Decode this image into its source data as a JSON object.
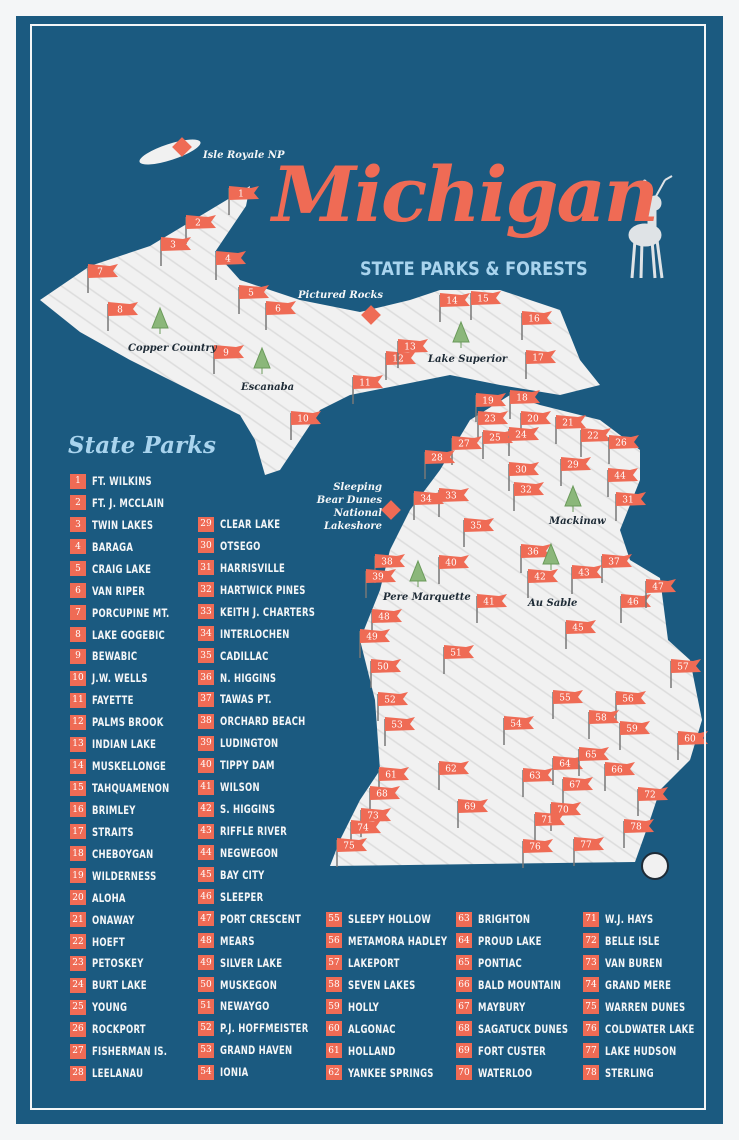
{
  "title": "Michigan",
  "subtitle": "STATE PARKS & FORESTS",
  "colors": {
    "background": "#1b5a80",
    "accent": "#ef6b55",
    "subtitle": "#a9d4ee",
    "land": "#f1f1f1"
  },
  "icons": {
    "deer": "deer-illustration",
    "tree": "pine-tree-icon",
    "landmark": "diamond-marker-icon",
    "flag": "pennant-flag-icon",
    "logo": "badge-logo"
  },
  "map_labels": {
    "isle_royale": "Isle Royale NP",
    "pictured_rocks": "Pictured Rocks",
    "copper_country": "Copper Country",
    "escanaba": "Escanaba",
    "lake_superior": "Lake Superior",
    "sleeping_bear": "Sleeping Bear Dunes National Lakeshore",
    "mackinaw": "Mackinaw",
    "pere_marquette": "Pere Marquette",
    "au_sable": "Au Sable"
  },
  "list_heading": "State Parks",
  "parks": [
    "FT. WILKINS",
    "FT. J. MCCLAIN",
    "TWIN LAKES",
    "BARAGA",
    "CRAIG LAKE",
    "VAN RIPER",
    "PORCUPINE MT.",
    "LAKE GOGEBIC",
    "BEWABIC",
    "J.W. WELLS",
    "FAYETTE",
    "PALMS BROOK",
    "INDIAN LAKE",
    "MUSKELLONGE",
    "TAHQUAMENON",
    "BRIMLEY",
    "STRAITS",
    "CHEBOYGAN",
    "WILDERNESS",
    "ALOHA",
    "ONAWAY",
    "HOEFT",
    "PETOSKEY",
    "BURT LAKE",
    "YOUNG",
    "ROCKPORT",
    "FISHERMAN IS.",
    "LEELANAU",
    "CLEAR LAKE",
    "OTSEGO",
    "HARRISVILLE",
    "HARTWICK PINES",
    "KEITH J. CHARTERS",
    "INTERLOCHEN",
    "CADILLAC",
    "N. HIGGINS",
    "TAWAS PT.",
    "ORCHARD BEACH",
    "LUDINGTON",
    "TIPPY DAM",
    "WILSON",
    "S. HIGGINS",
    "RIFFLE RIVER",
    "NEGWEGON",
    "BAY CITY",
    "SLEEPER",
    "PORT CRESCENT",
    "MEARS",
    "SILVER LAKE",
    "MUSKEGON",
    "NEWAYGO",
    "P.J. HOFFMEISTER",
    "GRAND HAVEN",
    "IONIA",
    "SLEEPY HOLLOW",
    "METAMORA HADLEY",
    "LAKEPORT",
    "SEVEN LAKES",
    "HOLLY",
    "ALGONAC",
    "HOLLAND",
    "YANKEE SPRINGS",
    "BRIGHTON",
    "PROUD LAKE",
    "PONTIAC",
    "BALD MOUNTAIN",
    "MAYBURY",
    "SAGATUCK DUNES",
    "FORT CUSTER",
    "WATERLOO",
    "W.J. HAYS",
    "BELLE ISLE",
    "VAN BUREN",
    "GRAND MERE",
    "WARREN DUNES",
    "COLDWATER LAKE",
    "LAKE HUDSON",
    "STERLING"
  ]
}
